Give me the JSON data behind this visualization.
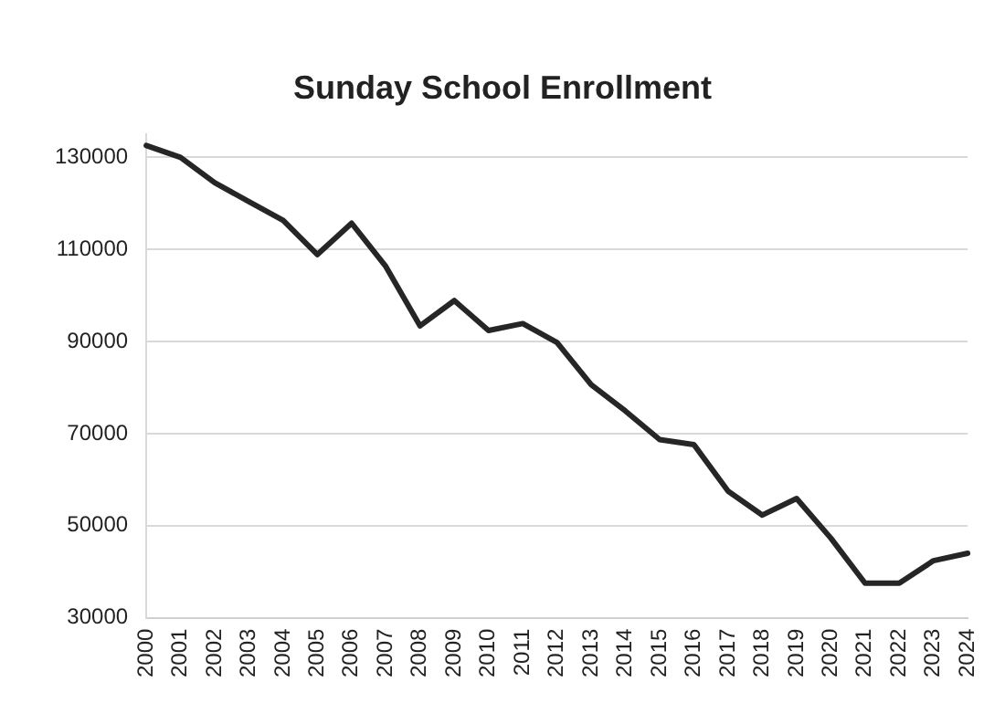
{
  "chart_data": {
    "type": "line",
    "title": "Sunday School Enrollment",
    "categories": [
      "2000",
      "2001",
      "2002",
      "2003",
      "2004",
      "2005",
      "2006",
      "2007",
      "2008",
      "2009",
      "2010",
      "2011",
      "2012",
      "2013",
      "2014",
      "2015",
      "2016",
      "2017",
      "2018",
      "2019",
      "2020",
      "2021",
      "2022",
      "2023",
      "2024"
    ],
    "series": [
      {
        "color": "#262626",
        "values": [
          132600,
          130000,
          124500,
          120400,
          116300,
          108900,
          115700,
          106300,
          93400,
          98900,
          92400,
          93900,
          89800,
          80600,
          74900,
          68700,
          67600,
          57500,
          52300,
          55900,
          47300,
          37500,
          37500,
          42400,
          44000
        ]
      }
    ],
    "ylim": [
      30000,
      135000
    ],
    "yticks": [
      30000,
      50000,
      70000,
      90000,
      110000,
      130000
    ],
    "grid": "y",
    "legend": false,
    "marker": "none",
    "line_style": "solid"
  }
}
